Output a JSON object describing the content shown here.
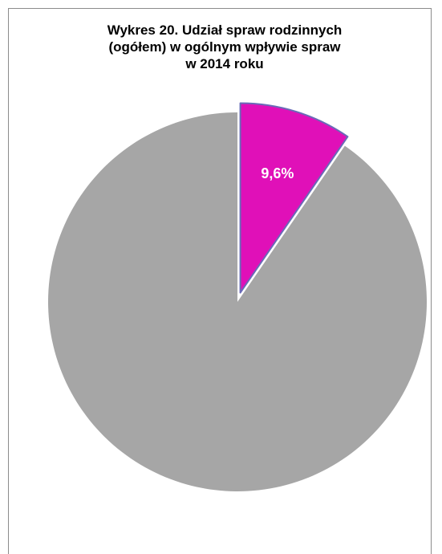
{
  "chart_data": {
    "type": "pie",
    "title_lines": [
      "Wykres 20. Udział spraw rodzinnych",
      "(ogółem) w ogólnym wpływie spraw",
      "w 2014 roku"
    ],
    "slices": [
      {
        "value": 9.6,
        "label": "9,6%",
        "color": "#e010b8",
        "exploded": true
      },
      {
        "value": 90.4,
        "label": "",
        "color": "#a6a6a6",
        "exploded": false
      }
    ],
    "start_angle_deg": 0,
    "direction": "clockwise",
    "edge_color": "#6a6ab8",
    "label_color": "#ffffff"
  }
}
